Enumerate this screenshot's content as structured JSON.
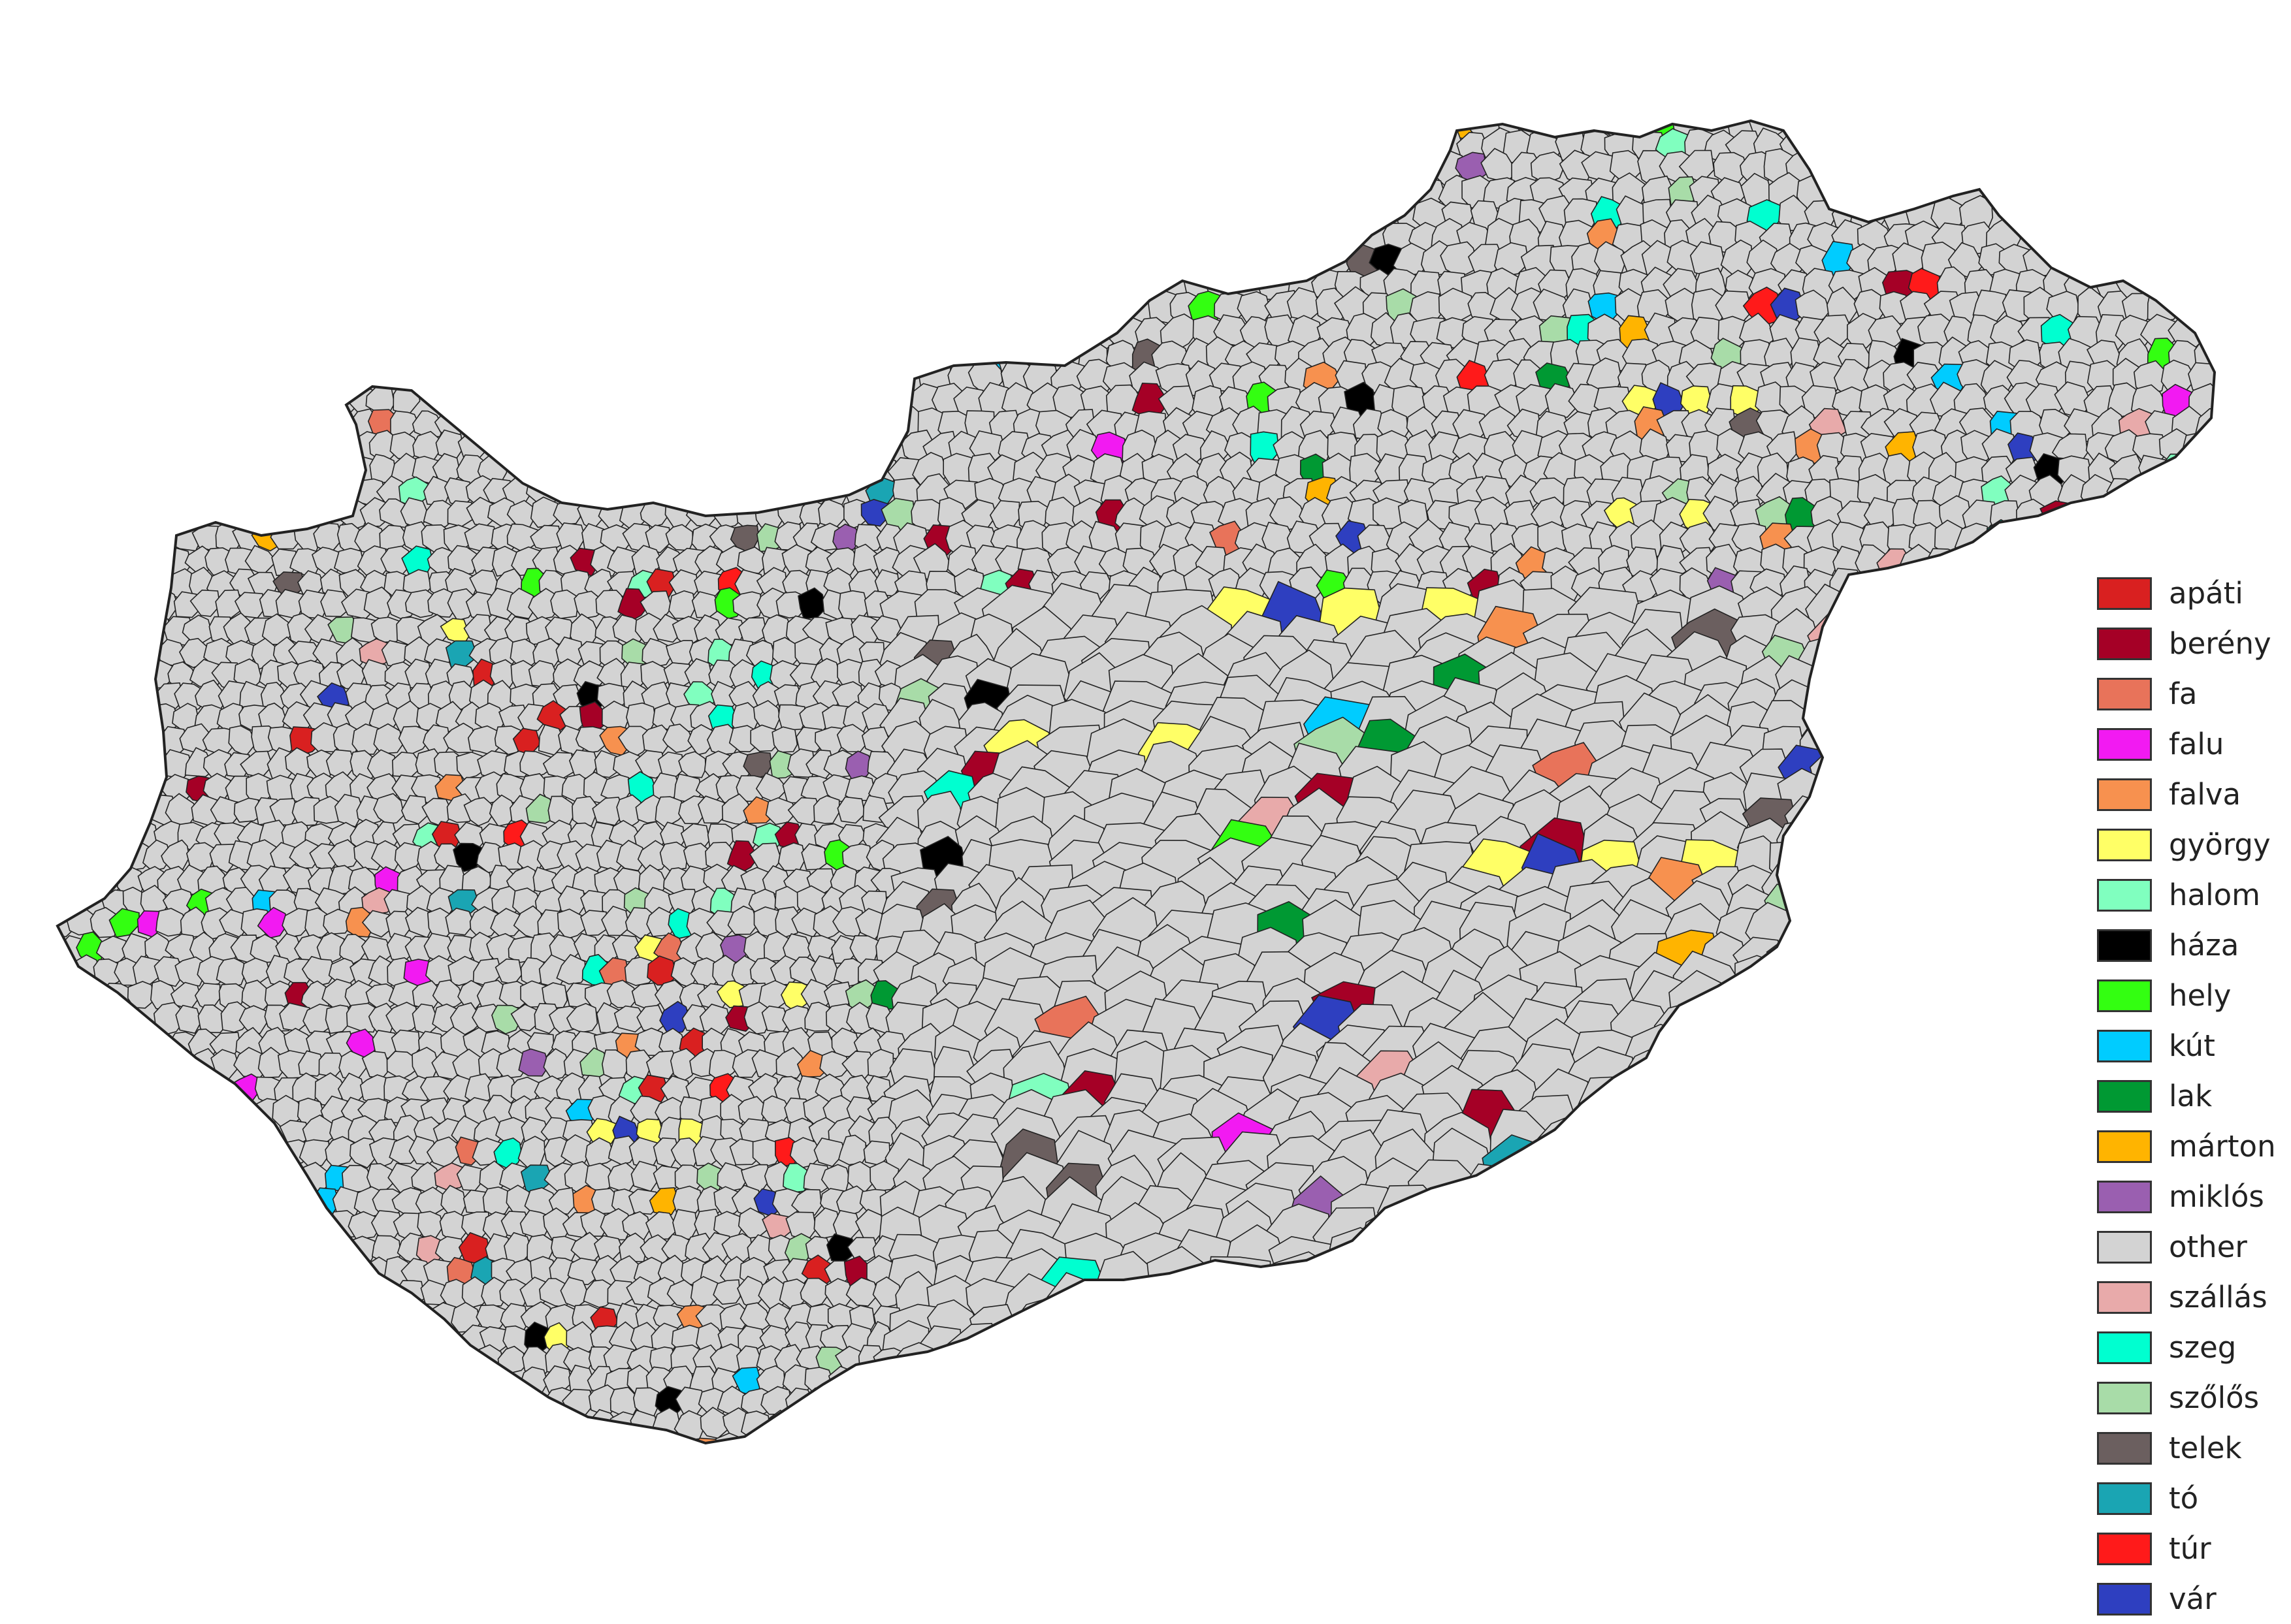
{
  "legend": {
    "items": [
      {
        "label": "apáti",
        "color": "#d92020"
      },
      {
        "label": "berény",
        "color": "#a50026"
      },
      {
        "label": "fa",
        "color": "#e8735a"
      },
      {
        "label": "falu",
        "color": "#f21af2"
      },
      {
        "label": "falva",
        "color": "#f7914f"
      },
      {
        "label": "györgy",
        "color": "#ffff66"
      },
      {
        "label": "halom",
        "color": "#80ffbf"
      },
      {
        "label": "háza",
        "color": "#000000"
      },
      {
        "label": "hely",
        "color": "#33ff11"
      },
      {
        "label": "kút",
        "color": "#00ccff"
      },
      {
        "label": "lak",
        "color": "#009933"
      },
      {
        "label": "márton",
        "color": "#ffb400"
      },
      {
        "label": "miklós",
        "color": "#9a5fb0"
      },
      {
        "label": "other",
        "color": "#d3d3d3"
      },
      {
        "label": "szállás",
        "color": "#e8aaaa"
      },
      {
        "label": "szeg",
        "color": "#00ffd0"
      },
      {
        "label": "szőlős",
        "color": "#a8dca8"
      },
      {
        "label": "telek",
        "color": "#6b5f5f"
      },
      {
        "label": "tó",
        "color": "#1aa5b3"
      },
      {
        "label": "túr",
        "color": "#ff1a1a"
      },
      {
        "label": "vár",
        "color": "#2e3fc0"
      }
    ]
  },
  "map": {
    "border_color": "#222222",
    "default_fill": "#d3d3d3"
  }
}
